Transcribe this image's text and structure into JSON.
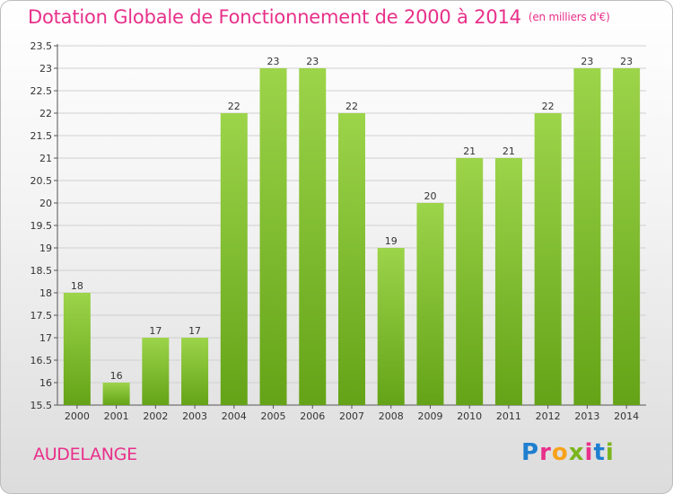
{
  "header": {
    "title": "Dotation Globale de Fonctionnement de 2000 à 2014",
    "unit": "(en milliers d'€)"
  },
  "footer": {
    "location": "AUDELANGE",
    "brand_letters": [
      {
        "ch": "P",
        "color": "#1e7fd0"
      },
      {
        "ch": "r",
        "color": "#e8308a"
      },
      {
        "ch": "o",
        "color": "#f7a21b"
      },
      {
        "ch": "x",
        "color": "#7ab51d"
      },
      {
        "ch": "i",
        "color": "#e8308a"
      },
      {
        "ch": "t",
        "color": "#1e7fd0"
      },
      {
        "ch": "i",
        "color": "#7ab51d"
      }
    ]
  },
  "colors": {
    "bar_light": "#9cd44a",
    "bar_dark": "#64a317",
    "title": "#e8308a",
    "grid": "#d0d0d0"
  },
  "chart_data": {
    "type": "bar",
    "categories": [
      "2000",
      "2001",
      "2002",
      "2003",
      "2004",
      "2005",
      "2006",
      "2007",
      "2008",
      "2009",
      "2010",
      "2011",
      "2012",
      "2013",
      "2014"
    ],
    "values": [
      18,
      16,
      17,
      17,
      22,
      23,
      23,
      22,
      19,
      20,
      21,
      21,
      22,
      23,
      23
    ],
    "value_labels": [
      "18",
      "16",
      "17",
      "17",
      "22",
      "23",
      "23",
      "22",
      "19",
      "20",
      "21",
      "21",
      "22",
      "23",
      "23"
    ],
    "ylim": [
      15.5,
      23.5
    ],
    "yticks": [
      "15.5",
      "16",
      "16.5",
      "17",
      "17.5",
      "18",
      "18.5",
      "19",
      "19.5",
      "20",
      "20.5",
      "21",
      "21.5",
      "22",
      "22.5",
      "23",
      "23.5"
    ],
    "grid": true
  }
}
